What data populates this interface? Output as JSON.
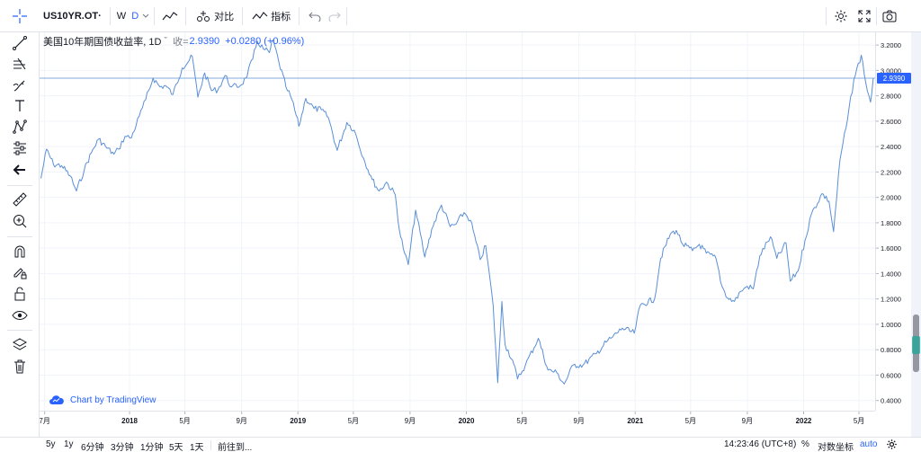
{
  "toolbar": {
    "symbol": "US10YR.OT·",
    "intervals": [
      "W",
      "D"
    ],
    "active_interval": "D",
    "compare_label": "对比",
    "indicators_label": "指标",
    "icons": {
      "crosshair": "crosshair-icon",
      "chart_type": "line-chart-icon",
      "compare": "compare-icon",
      "indicators": "indicators-icon",
      "undo": "undo-icon",
      "redo": "redo-icon",
      "settings": "gear-icon",
      "fullscreen": "fullscreen-icon",
      "snapshot": "camera-icon"
    }
  },
  "left_toolbar": {
    "tools": [
      "trend-line-icon",
      "fork-lines-icon",
      "brush-icon",
      "text-icon",
      "pattern-icon",
      "projection-icon",
      "arrow-left-icon",
      "ruler-icon",
      "zoom-in-icon",
      "magnet-icon",
      "pencil-lock-icon",
      "lock-icon",
      "eye-icon",
      "layers-icon",
      "trash-icon"
    ]
  },
  "legend": {
    "title": "美国10年期国债收益率, 1D",
    "dropdown": "ˇ",
    "close_label": "收=",
    "close_value": "2.9390",
    "change": "+0.0280 (+0.96%)"
  },
  "watermark": {
    "text": "Chart by TradingView",
    "icon": "tradingview-cloud-icon"
  },
  "bottom_bar": {
    "ranges": [
      "5y",
      "1y",
      "6分钟",
      "3分钟",
      "1分钟",
      "5天",
      "1天"
    ],
    "goto_label": "前往到...",
    "clock": "14:23:46 (UTC+8)",
    "percent_label": "%",
    "log_label": "对数坐标",
    "auto_label": "auto",
    "settings_icon": "gear-icon"
  },
  "chart_data": {
    "type": "line",
    "series": [
      {
        "color": "#5b8fd6",
        "points": [
          [
            "2017-06-23",
            2.15
          ],
          [
            "2017-07-05",
            2.38
          ],
          [
            "2017-07-20",
            2.26
          ],
          [
            "2017-08-07",
            2.25
          ],
          [
            "2017-08-25",
            2.17
          ],
          [
            "2017-09-08",
            2.05
          ],
          [
            "2017-09-25",
            2.22
          ],
          [
            "2017-10-10",
            2.35
          ],
          [
            "2017-10-26",
            2.46
          ],
          [
            "2017-11-10",
            2.4
          ],
          [
            "2017-11-28",
            2.34
          ],
          [
            "2017-12-08",
            2.38
          ],
          [
            "2017-12-22",
            2.48
          ],
          [
            "2018-01-05",
            2.47
          ],
          [
            "2018-01-22",
            2.64
          ],
          [
            "2018-02-05",
            2.77
          ],
          [
            "2018-02-21",
            2.94
          ],
          [
            "2018-03-08",
            2.87
          ],
          [
            "2018-03-20",
            2.88
          ],
          [
            "2018-04-05",
            2.81
          ],
          [
            "2018-04-25",
            3.02
          ],
          [
            "2018-05-17",
            3.11
          ],
          [
            "2018-05-29",
            2.79
          ],
          [
            "2018-06-13",
            2.98
          ],
          [
            "2018-06-28",
            2.84
          ],
          [
            "2018-07-12",
            2.85
          ],
          [
            "2018-07-27",
            2.96
          ],
          [
            "2018-08-10",
            2.87
          ],
          [
            "2018-08-29",
            2.88
          ],
          [
            "2018-09-10",
            2.94
          ],
          [
            "2018-09-25",
            3.09
          ],
          [
            "2018-10-05",
            3.23
          ],
          [
            "2018-10-18",
            3.17
          ],
          [
            "2018-10-31",
            3.14
          ],
          [
            "2018-11-08",
            3.24
          ],
          [
            "2018-11-21",
            3.06
          ],
          [
            "2018-12-06",
            2.87
          ],
          [
            "2018-12-19",
            2.77
          ],
          [
            "2019-01-03",
            2.56
          ],
          [
            "2019-01-18",
            2.78
          ],
          [
            "2019-02-05",
            2.7
          ],
          [
            "2019-02-21",
            2.69
          ],
          [
            "2019-03-08",
            2.63
          ],
          [
            "2019-03-27",
            2.37
          ],
          [
            "2019-04-17",
            2.59
          ],
          [
            "2019-05-03",
            2.53
          ],
          [
            "2019-05-23",
            2.31
          ],
          [
            "2019-06-11",
            2.14
          ],
          [
            "2019-06-26",
            2.05
          ],
          [
            "2019-07-12",
            2.12
          ],
          [
            "2019-07-31",
            2.02
          ],
          [
            "2019-08-09",
            1.74
          ],
          [
            "2019-08-20",
            1.56
          ],
          [
            "2019-08-28",
            1.47
          ],
          [
            "2019-09-13",
            1.9
          ],
          [
            "2019-10-03",
            1.53
          ],
          [
            "2019-10-18",
            1.75
          ],
          [
            "2019-11-08",
            1.94
          ],
          [
            "2019-11-27",
            1.77
          ],
          [
            "2019-12-10",
            1.79
          ],
          [
            "2019-12-27",
            1.88
          ],
          [
            "2020-01-10",
            1.82
          ],
          [
            "2020-01-31",
            1.51
          ],
          [
            "2020-02-12",
            1.62
          ],
          [
            "2020-02-28",
            1.15
          ],
          [
            "2020-03-09",
            0.54
          ],
          [
            "2020-03-18",
            1.18
          ],
          [
            "2020-03-25",
            0.84
          ],
          [
            "2020-04-10",
            0.72
          ],
          [
            "2020-04-21",
            0.57
          ],
          [
            "2020-05-08",
            0.68
          ],
          [
            "2020-06-05",
            0.89
          ],
          [
            "2020-06-26",
            0.64
          ],
          [
            "2020-07-15",
            0.62
          ],
          [
            "2020-07-31",
            0.53
          ],
          [
            "2020-08-20",
            0.68
          ],
          [
            "2020-09-10",
            0.68
          ],
          [
            "2020-10-09",
            0.77
          ],
          [
            "2020-10-30",
            0.86
          ],
          [
            "2020-11-13",
            0.9
          ],
          [
            "2020-12-04",
            0.97
          ],
          [
            "2020-12-30",
            0.93
          ],
          [
            "2021-01-12",
            1.15
          ],
          [
            "2021-02-12",
            1.2
          ],
          [
            "2021-02-25",
            1.52
          ],
          [
            "2021-03-18",
            1.71
          ],
          [
            "2021-03-31",
            1.74
          ],
          [
            "2021-04-14",
            1.63
          ],
          [
            "2021-05-05",
            1.58
          ],
          [
            "2021-05-20",
            1.63
          ],
          [
            "2021-06-04",
            1.56
          ],
          [
            "2021-06-25",
            1.52
          ],
          [
            "2021-07-08",
            1.3
          ],
          [
            "2021-07-20",
            1.21
          ],
          [
            "2021-08-04",
            1.18
          ],
          [
            "2021-08-18",
            1.26
          ],
          [
            "2021-09-01",
            1.3
          ],
          [
            "2021-09-14",
            1.28
          ],
          [
            "2021-09-28",
            1.54
          ],
          [
            "2021-10-21",
            1.69
          ],
          [
            "2021-11-04",
            1.52
          ],
          [
            "2021-11-24",
            1.64
          ],
          [
            "2021-12-03",
            1.34
          ],
          [
            "2021-12-20",
            1.42
          ],
          [
            "2022-01-04",
            1.66
          ],
          [
            "2022-01-18",
            1.87
          ],
          [
            "2022-02-10",
            2.03
          ],
          [
            "2022-02-25",
            1.97
          ],
          [
            "2022-03-07",
            1.73
          ],
          [
            "2022-03-21",
            2.3
          ],
          [
            "2022-04-06",
            2.61
          ],
          [
            "2022-04-20",
            2.93
          ],
          [
            "2022-05-06",
            3.12
          ],
          [
            "2022-05-19",
            2.84
          ],
          [
            "2022-05-26",
            2.75
          ],
          [
            "2022-06-01",
            2.94
          ]
        ]
      }
    ],
    "y_axis": {
      "ylim": [
        0.32,
        3.3
      ],
      "ticks": [
        "0.4000",
        "0.6000",
        "0.8000",
        "1.0000",
        "1.2000",
        "1.4000",
        "1.6000",
        "1.8000",
        "2.0000",
        "2.2000",
        "2.4000",
        "2.6000",
        "2.8000",
        "3.0000",
        "3.2000"
      ]
    },
    "x_axis": {
      "xlim": [
        "2017-06-20",
        "2022-06-05"
      ],
      "ticks": [
        {
          "date": "2017-07-01",
          "label": "7月",
          "bold": false
        },
        {
          "date": "2018-01-01",
          "label": "2018",
          "bold": true
        },
        {
          "date": "2018-05-01",
          "label": "5月",
          "bold": false
        },
        {
          "date": "2018-09-01",
          "label": "9月",
          "bold": false
        },
        {
          "date": "2019-01-01",
          "label": "2019",
          "bold": true
        },
        {
          "date": "2019-05-01",
          "label": "5月",
          "bold": false
        },
        {
          "date": "2019-09-01",
          "label": "9月",
          "bold": false
        },
        {
          "date": "2020-01-01",
          "label": "2020",
          "bold": true
        },
        {
          "date": "2020-05-01",
          "label": "5月",
          "bold": false
        },
        {
          "date": "2020-09-01",
          "label": "9月",
          "bold": false
        },
        {
          "date": "2021-01-01",
          "label": "2021",
          "bold": true
        },
        {
          "date": "2021-05-01",
          "label": "5月",
          "bold": false
        },
        {
          "date": "2021-09-01",
          "label": "9月",
          "bold": false
        },
        {
          "date": "2022-01-01",
          "label": "2022",
          "bold": true
        },
        {
          "date": "2022-05-01",
          "label": "5月",
          "bold": false
        }
      ]
    },
    "last_value": 2.939,
    "last_value_label": "2.9390",
    "grid": true
  }
}
